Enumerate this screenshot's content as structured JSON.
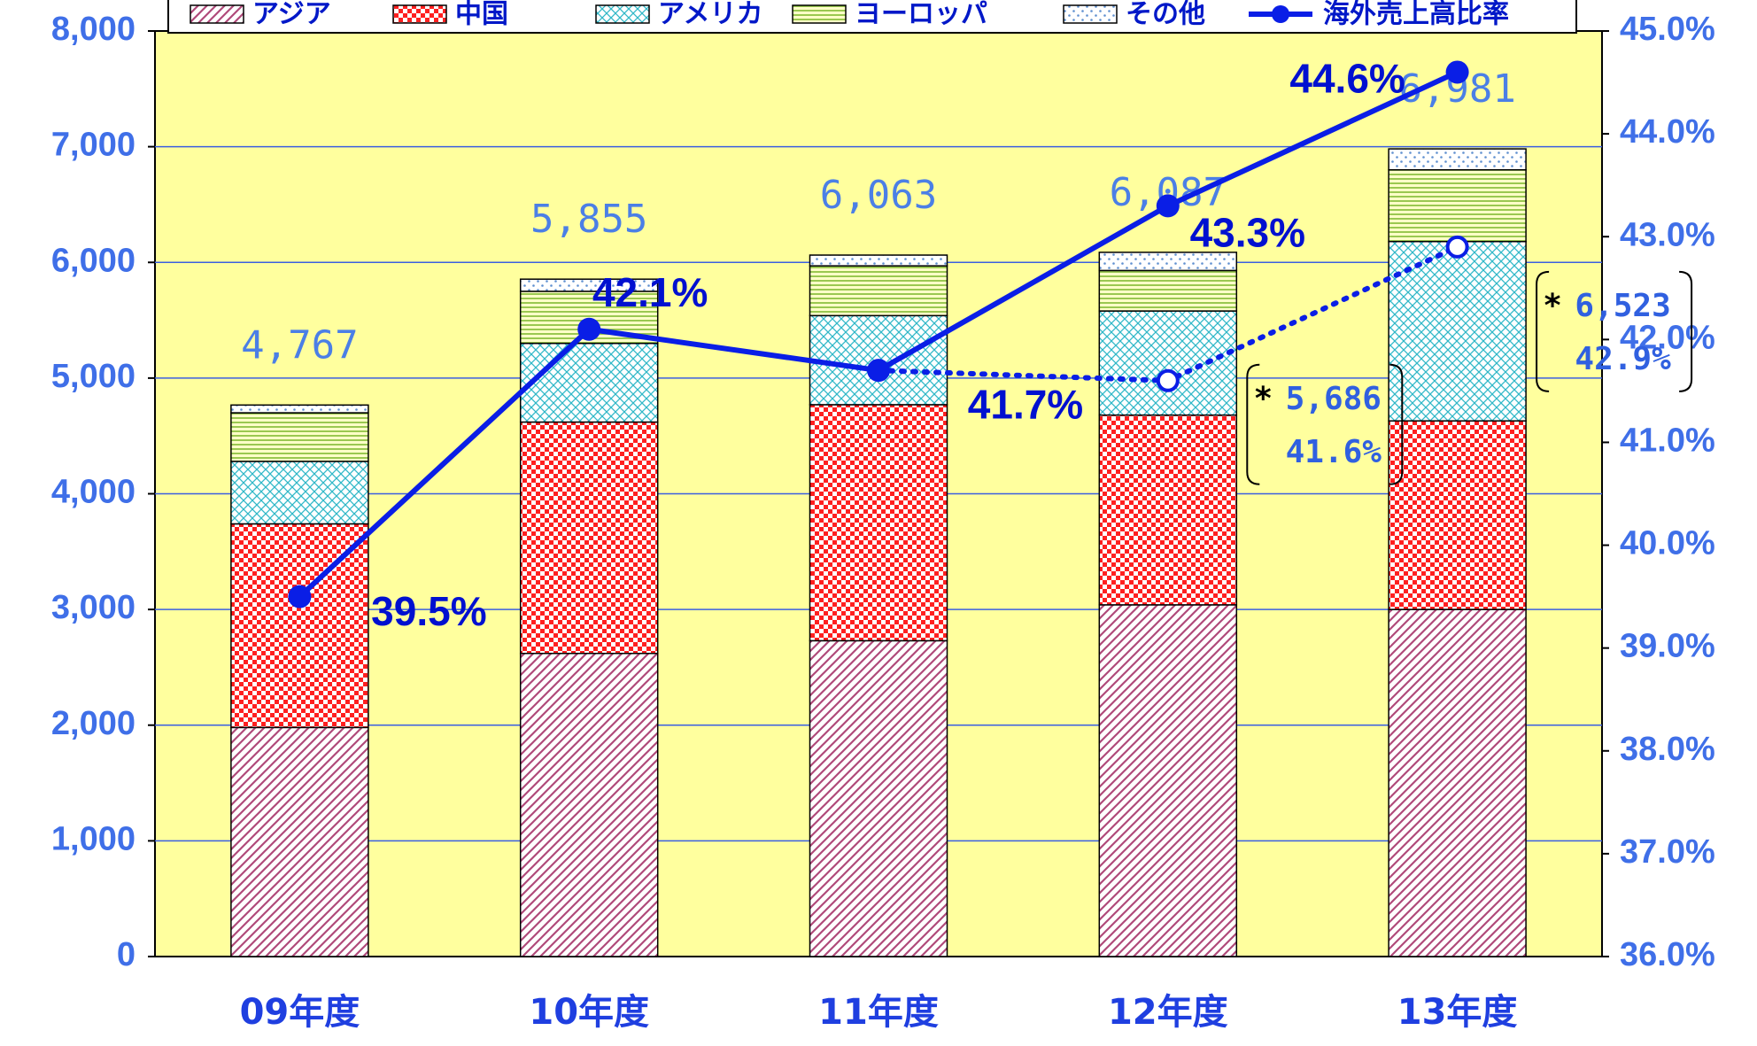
{
  "chart_data": {
    "type": "stacked_bar_line",
    "categories": [
      "09年度",
      "10年度",
      "11年度",
      "12年度",
      "13年度"
    ],
    "series": [
      {
        "name": "アジア",
        "color": "#b04a7a",
        "values": [
          1980,
          2620,
          2730,
          3040,
          3000
        ]
      },
      {
        "name": "中国",
        "color": "#ff2020",
        "values": [
          1760,
          2000,
          2040,
          1640,
          1630
        ]
      },
      {
        "name": "アメリカ",
        "color": "#30b8c8",
        "values": [
          540,
          680,
          770,
          900,
          1550
        ]
      },
      {
        "name": "ヨーロッパ",
        "color": "#8cc040",
        "values": [
          420,
          450,
          430,
          350,
          620
        ]
      },
      {
        "name": "その他",
        "color": "#6090d0",
        "values": [
          67,
          105,
          93,
          157,
          181
        ]
      },
      {
        "name": "海外売上高比率",
        "color": "#0a1ee6",
        "axis": "y2",
        "values": [
          39.5,
          42.1,
          41.7,
          43.3,
          44.6
        ],
        "value_labels": [
          "39.5%",
          "42.1%",
          "41.7%",
          "43.3%",
          "44.6%"
        ]
      }
    ],
    "totals": [
      4767,
      5855,
      6063,
      6087,
      6981
    ],
    "total_labels": [
      "4,767",
      "5,855",
      "6,063",
      "6,087",
      "6,981"
    ],
    "adjusted": {
      "marker": "*",
      "values": [
        null,
        null,
        41.7,
        41.6,
        42.9
      ],
      "value_labels": [
        null,
        null,
        null,
        "41.6%",
        "42.9%"
      ],
      "totals": [
        null,
        null,
        null,
        5686,
        6523
      ],
      "total_labels": [
        null,
        null,
        null,
        "5,686",
        "6,523"
      ]
    },
    "ylim": [
      0,
      8000
    ],
    "yticks": [
      0,
      {
        "value": 1000,
        "label": "1,000"
      },
      {
        "value": 2000,
        "label": "2,000"
      },
      {
        "value": 3000,
        "label": "3,000"
      },
      {
        "value": 4000,
        "label": "4,000"
      },
      {
        "value": 5000,
        "label": "5,000"
      },
      {
        "value": 6000,
        "label": "6,000"
      },
      {
        "value": 7000,
        "label": "7,000"
      },
      {
        "value": 8000,
        "label": "8,000"
      }
    ],
    "y2lim": [
      36,
      45
    ],
    "y2ticks": [
      {
        "value": 36,
        "label": "36.0%"
      },
      {
        "value": 37,
        "label": "37.0%"
      },
      {
        "value": 38,
        "label": "38.0%"
      },
      {
        "value": 39,
        "label": "39.0%"
      },
      {
        "value": 40,
        "label": "40.0%"
      },
      {
        "value": 41,
        "label": "41.0%"
      },
      {
        "value": 42,
        "label": "42.0%"
      },
      {
        "value": 43,
        "label": "43.0%"
      },
      {
        "value": 44,
        "label": "44.0%"
      },
      {
        "value": 45,
        "label": "45.0%"
      }
    ],
    "grid": true,
    "plot_background": "#ffff9e",
    "legend": "top"
  }
}
